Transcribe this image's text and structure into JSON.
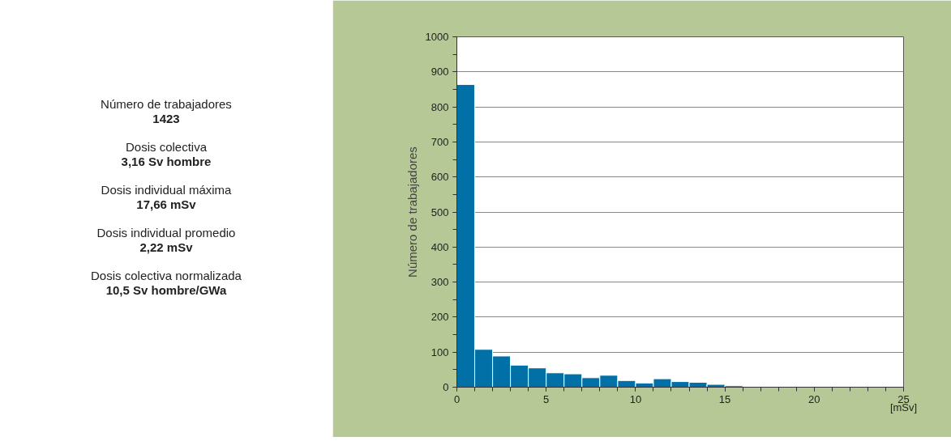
{
  "chart_data": {
    "type": "histogram",
    "ylabel": "Número de trabajadores",
    "xlabel": "[mSv]",
    "bins": [
      0,
      1,
      2,
      3,
      4,
      5,
      6,
      7,
      8,
      9,
      10,
      11,
      12,
      13,
      14,
      15,
      16,
      17,
      18,
      19,
      20,
      21,
      22,
      23,
      24,
      25
    ],
    "values": [
      864,
      108,
      89,
      63,
      55,
      41,
      38,
      27,
      34,
      19,
      12,
      24,
      16,
      14,
      8,
      4,
      1,
      1,
      0,
      0,
      0,
      0,
      0,
      0,
      0
    ],
    "color": "#0070a6",
    "xlim": [
      0,
      25
    ],
    "xticks": [
      0,
      5,
      10,
      15,
      20,
      25
    ],
    "ylim": [
      0,
      1000
    ],
    "yticks": [
      0,
      100,
      200,
      300,
      400,
      500,
      600,
      700,
      800,
      900,
      1000
    ],
    "grid": "y",
    "annotations": [
      "Número de trabajadores",
      "1423",
      "Dosis colectiva",
      "3,16 Sv hombre",
      "Dosis individual máxima",
      "17,66 mSv",
      "Dosis individual promedio",
      "2,22 mSv",
      "Dosis colectiva normalizada",
      "10,5 Sv hombre/GWa"
    ]
  }
}
